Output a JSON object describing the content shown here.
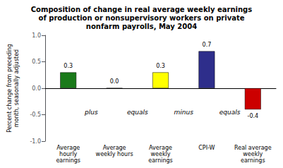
{
  "chart_data": {
    "type": "bar",
    "title": "Composition of change in real average weekly earnings\nof production or nonsupervisory workers on private\nnonfarm payrolls, May 2004",
    "categories": [
      "Average\nhourly\nearnings",
      "Average\nweekly hours",
      "Average\nweekly\nearnings",
      "CPI-W",
      "Real average\nweekly\nearnings"
    ],
    "values": [
      0.3,
      0.0,
      0.3,
      0.7,
      -0.4
    ],
    "value_labels": [
      "0.3",
      "0.0",
      "0.3",
      "0.7",
      "-0.4"
    ],
    "colors": [
      "#1a7a1a",
      "#808080",
      "#ffff00",
      "#2e2e8b",
      "#cc0000"
    ],
    "ylabel": "Percent change from preceding\nmonth, seasonally adjusted",
    "ylim": [
      -1.0,
      1.0
    ],
    "yticks": [
      {
        "value": -1.0,
        "label": "-1.0"
      },
      -0.5,
      {
        "value": 0.0,
        "label": "0.0"
      },
      0.5,
      {
        "value": 1.0,
        "label": "1.0"
      }
    ],
    "grid": false,
    "data_labels": true,
    "annotations": [
      {
        "text": "plus",
        "y": -0.45
      },
      {
        "text": "equals",
        "y": -0.45
      },
      {
        "text": "minus",
        "y": -0.45
      },
      {
        "text": "equals",
        "y": -0.45
      }
    ]
  }
}
